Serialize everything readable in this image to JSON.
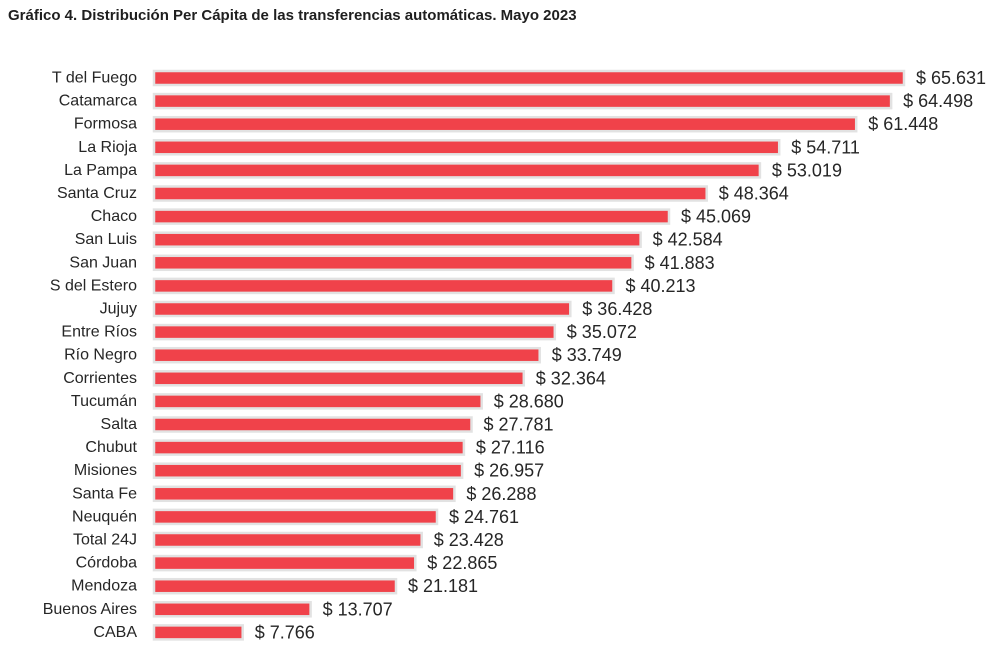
{
  "chart_data": {
    "type": "bar",
    "orientation": "horizontal",
    "title": "Gráfico 4. Distribución Per Cápita de las transferencias automáticas. Mayo 2023",
    "categories": [
      "T del Fuego",
      "Catamarca",
      "Formosa",
      "La Rioja",
      "La Pampa",
      "Santa Cruz",
      "Chaco",
      "San Luis",
      "San Juan",
      "S del Estero",
      "Jujuy",
      "Entre Ríos",
      "Río Negro",
      "Corrientes",
      "Tucumán",
      "Salta",
      "Chubut",
      "Misiones",
      "Santa Fe",
      "Neuquén",
      "Total 24J",
      "Córdoba",
      "Mendoza",
      "Buenos Aires",
      "CABA"
    ],
    "values": [
      65631,
      64498,
      61448,
      54711,
      53019,
      48364,
      45069,
      42584,
      41883,
      40213,
      36428,
      35072,
      33749,
      32364,
      28680,
      27781,
      27116,
      26957,
      26288,
      24761,
      23428,
      22865,
      21181,
      13707,
      7766
    ],
    "value_labels": [
      "$ 65.631",
      "$ 64.498",
      "$ 61.448",
      "$ 54.711",
      "$ 53.019",
      "$ 48.364",
      "$ 45.069",
      "$ 42.584",
      "$ 41.883",
      "$ 40.213",
      "$ 36.428",
      "$ 35.072",
      "$ 33.749",
      "$ 32.364",
      "$ 28.680",
      "$ 27.781",
      "$ 27.116",
      "$ 26.957",
      "$ 26.288",
      "$ 24.761",
      "$ 23.428",
      "$ 22.865",
      "$ 21.181",
      "$ 13.707",
      "$ 7.766"
    ],
    "xlim": [
      0,
      65631
    ],
    "grid": false,
    "legend": "none",
    "bar_color": "#f0424a",
    "bar_edge_color": "#e2e2e2"
  }
}
